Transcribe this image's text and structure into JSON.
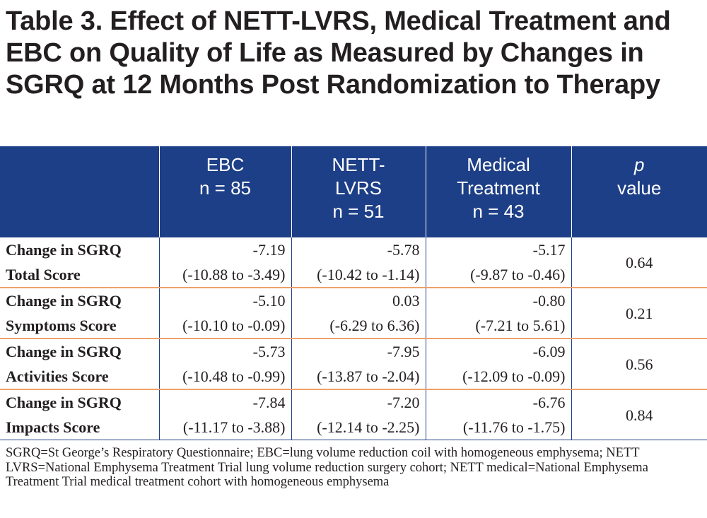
{
  "title": "Table 3. Effect of NETT-LVRS, Medical Treatment and EBC on Quality of Life as Measured by Changes in SGRQ at 12 Months Post Randomization to Therapy",
  "header": {
    "col0": "",
    "col1": [
      "EBC",
      "n = 85"
    ],
    "col2": [
      "NETT-",
      "LVRS",
      "n = 51"
    ],
    "col3": [
      "Medical",
      "Treatment",
      "n = 43"
    ],
    "col4": [
      "p",
      "value"
    ]
  },
  "rows": [
    {
      "label": [
        "Change in SGRQ",
        "Total Score"
      ],
      "ebc": [
        "-7.19",
        "(-10.88 to -3.49)"
      ],
      "lvrs": [
        "-5.78",
        "(-10.42 to -1.14)"
      ],
      "medical": [
        "-5.17",
        "(-9.87 to -0.46)"
      ],
      "p": "0.64"
    },
    {
      "label": [
        "Change in SGRQ",
        "Symptoms Score"
      ],
      "ebc": [
        "-5.10",
        "(-10.10 to -0.09)"
      ],
      "lvrs": [
        "0.03",
        "(-6.29 to 6.36)"
      ],
      "medical": [
        "-0.80",
        "(-7.21 to 5.61)"
      ],
      "p": "0.21"
    },
    {
      "label": [
        "Change in SGRQ",
        "Activities Score"
      ],
      "ebc": [
        "-5.73",
        "(-10.48 to -0.99)"
      ],
      "lvrs": [
        "-7.95",
        "(-13.87 to -2.04)"
      ],
      "medical": [
        "-6.09",
        "(-12.09 to -0.09)"
      ],
      "p": "0.56"
    },
    {
      "label": [
        "Change in SGRQ",
        "Impacts Score"
      ],
      "ebc": [
        "-7.84",
        "(-11.17 to -3.88)"
      ],
      "lvrs": [
        "-7.20",
        "(-12.14 to -2.25)"
      ],
      "medical": [
        "-6.76",
        "(-11.76 to -1.75)"
      ],
      "p": "0.84"
    }
  ],
  "footnote": "SGRQ=St George’s Respiratory Questionnaire; EBC=lung volume reduction coil with homogeneous emphysema; NETT LVRS=National Emphysema Treatment Trial lung volume reduction surgery cohort; NETT medical=National Emphysema Treatment Trial medical treatment cohort with homogeneous emphysema",
  "colors": {
    "header_bg": "#1d3f87",
    "row_divider": "#f0a06a",
    "text": "#231f20"
  }
}
